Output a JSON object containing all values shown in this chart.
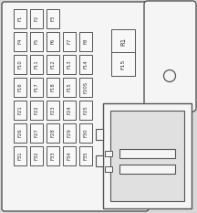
{
  "bg_color": "#d8d8d8",
  "panel_bg": "#f5f5f5",
  "fuse_bg": "#f8f8f8",
  "line_color": "#555555",
  "text_color": "#333333",
  "fuse_labels_row1": [
    "F1",
    "F2",
    "F3"
  ],
  "fuse_labels_row2": [
    "F4",
    "F5",
    "F6",
    "F7",
    "F8"
  ],
  "fuse_labels_row3": [
    "F10",
    "F11",
    "F12",
    "F13",
    "F14"
  ],
  "fuse_labels_row4": [
    "F16",
    "F17",
    "F18",
    "F15",
    "F20S"
  ],
  "fuse_labels_row5": [
    "F21",
    "F22",
    "F23",
    "F24",
    "F25"
  ],
  "fuse_labels_row6": [
    "F26",
    "F27",
    "F28",
    "F29",
    "F30"
  ],
  "fuse_labels_row7": [
    "F31",
    "F32",
    "F33",
    "F34",
    "F35"
  ],
  "relay1_label": "R1",
  "relay2_label": "F15",
  "figsize": [
    2.16,
    2.33
  ],
  "dpi": 100
}
